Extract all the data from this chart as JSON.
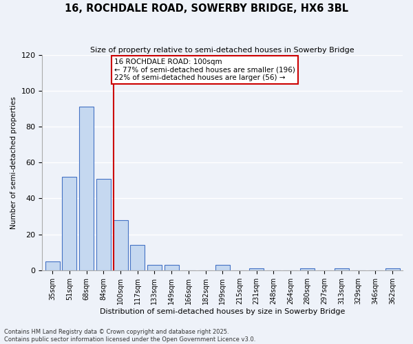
{
  "title": "16, ROCHDALE ROAD, SOWERBY BRIDGE, HX6 3BL",
  "subtitle": "Size of property relative to semi-detached houses in Sowerby Bridge",
  "xlabel": "Distribution of semi-detached houses by size in Sowerby Bridge",
  "ylabel": "Number of semi-detached properties",
  "categories": [
    "35sqm",
    "51sqm",
    "68sqm",
    "84sqm",
    "100sqm",
    "117sqm",
    "133sqm",
    "149sqm",
    "166sqm",
    "182sqm",
    "199sqm",
    "215sqm",
    "231sqm",
    "248sqm",
    "264sqm",
    "280sqm",
    "297sqm",
    "313sqm",
    "329sqm",
    "346sqm",
    "362sqm"
  ],
  "values": [
    5,
    52,
    91,
    51,
    28,
    14,
    3,
    3,
    0,
    0,
    3,
    0,
    1,
    0,
    0,
    1,
    0,
    1,
    0,
    0,
    1
  ],
  "bar_color": "#c5d8f0",
  "bar_edge_color": "#4472c4",
  "property_label": "16 ROCHDALE ROAD: 100sqm",
  "pct_smaller": 77,
  "pct_smaller_n": 196,
  "pct_larger": 22,
  "pct_larger_n": 56,
  "vline_color": "#cc0000",
  "annotation_box_color": "#cc0000",
  "background_color": "#eef2f9",
  "grid_color": "#ffffff",
  "ylim": [
    0,
    120
  ],
  "yticks": [
    0,
    20,
    40,
    60,
    80,
    100,
    120
  ],
  "footer1": "Contains HM Land Registry data © Crown copyright and database right 2025.",
  "footer2": "Contains public sector information licensed under the Open Government Licence v3.0."
}
